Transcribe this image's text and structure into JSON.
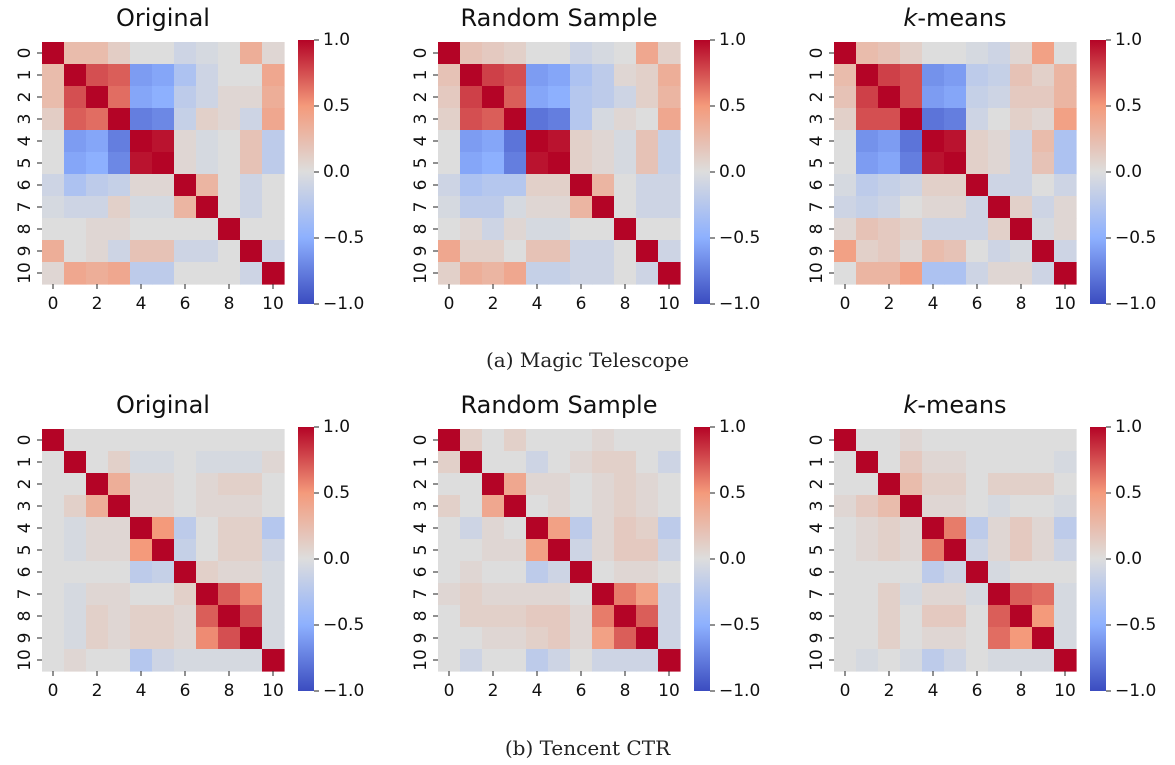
{
  "captions": [
    "(a) Magic Telescope",
    "(b) Tencent CTR"
  ],
  "colormap": {
    "name": "coolwarm",
    "low": "#3b4cc0",
    "mid": "#dddddd",
    "high": "#b40426"
  },
  "chart_data": [
    {
      "type": "heatmap",
      "panel": "a",
      "title": "Original",
      "title_prefix": "",
      "title_suffix": "",
      "x_tick_labels": [
        "0",
        "2",
        "4",
        "6",
        "8",
        "10"
      ],
      "y_tick_labels": [
        "0",
        "1",
        "2",
        "3",
        "4",
        "5",
        "6",
        "7",
        "8",
        "9",
        "10"
      ],
      "colorbar_ticks": [
        "1.0",
        "0.5",
        "0.0",
        "−0.5",
        "−1.0"
      ],
      "vmin": -1,
      "vmax": 1,
      "values": [
        [
          1.0,
          0.25,
          0.25,
          0.12,
          0.0,
          0.0,
          -0.1,
          -0.05,
          0.0,
          0.35,
          0.05
        ],
        [
          0.25,
          1.0,
          0.75,
          0.7,
          -0.6,
          -0.55,
          -0.3,
          -0.1,
          0.0,
          0.0,
          0.4
        ],
        [
          0.25,
          0.75,
          1.0,
          0.65,
          -0.55,
          -0.5,
          -0.2,
          -0.1,
          0.05,
          0.05,
          0.35
        ],
        [
          0.12,
          0.7,
          0.65,
          1.0,
          -0.75,
          -0.7,
          -0.15,
          0.1,
          0.05,
          -0.1,
          0.4
        ],
        [
          0.0,
          -0.6,
          -0.55,
          -0.75,
          1.0,
          0.95,
          0.05,
          -0.05,
          0.0,
          0.2,
          -0.2
        ],
        [
          0.0,
          -0.55,
          -0.5,
          -0.7,
          0.95,
          1.0,
          0.05,
          -0.05,
          0.0,
          0.2,
          -0.2
        ],
        [
          -0.1,
          -0.3,
          -0.2,
          -0.15,
          0.05,
          0.05,
          1.0,
          0.3,
          0.0,
          -0.1,
          0.0
        ],
        [
          -0.05,
          -0.1,
          -0.1,
          0.1,
          -0.05,
          -0.05,
          0.3,
          1.0,
          0.0,
          -0.1,
          0.0
        ],
        [
          0.0,
          0.0,
          0.05,
          0.05,
          0.0,
          0.0,
          0.0,
          0.0,
          1.0,
          0.0,
          0.0
        ],
        [
          0.35,
          0.0,
          0.05,
          -0.1,
          0.2,
          0.2,
          -0.1,
          -0.1,
          0.0,
          1.0,
          -0.1
        ],
        [
          0.05,
          0.4,
          0.35,
          0.4,
          -0.2,
          -0.2,
          0.0,
          0.0,
          0.0,
          -0.1,
          1.0
        ]
      ]
    },
    {
      "type": "heatmap",
      "panel": "a",
      "title": "Random Sample",
      "title_prefix": "",
      "title_suffix": "",
      "x_tick_labels": [
        "0",
        "2",
        "4",
        "6",
        "8",
        "10"
      ],
      "y_tick_labels": [
        "0",
        "1",
        "2",
        "3",
        "4",
        "5",
        "6",
        "7",
        "8",
        "9",
        "10"
      ],
      "colorbar_ticks": [
        "1.0",
        "0.5",
        "0.0",
        "−0.5",
        "−1.0"
      ],
      "vmin": -1,
      "vmax": 1,
      "values": [
        [
          1.0,
          0.2,
          0.15,
          0.1,
          0.0,
          0.0,
          -0.1,
          -0.05,
          0.0,
          0.4,
          0.1
        ],
        [
          0.2,
          1.0,
          0.8,
          0.75,
          -0.6,
          -0.55,
          -0.3,
          -0.2,
          0.05,
          0.1,
          0.35
        ],
        [
          0.15,
          0.8,
          1.0,
          0.7,
          -0.55,
          -0.5,
          -0.25,
          -0.2,
          -0.1,
          0.1,
          0.3
        ],
        [
          0.1,
          0.75,
          0.7,
          1.0,
          -0.8,
          -0.75,
          -0.25,
          -0.05,
          0.05,
          0.0,
          0.4
        ],
        [
          0.0,
          -0.6,
          -0.55,
          -0.8,
          1.0,
          0.95,
          0.1,
          0.05,
          -0.05,
          0.2,
          -0.15
        ],
        [
          0.0,
          -0.55,
          -0.5,
          -0.75,
          0.95,
          1.0,
          0.1,
          0.05,
          -0.05,
          0.2,
          -0.15
        ],
        [
          -0.1,
          -0.3,
          -0.25,
          -0.25,
          0.1,
          0.1,
          1.0,
          0.3,
          0.0,
          -0.1,
          -0.1
        ],
        [
          -0.05,
          -0.2,
          -0.2,
          -0.05,
          0.05,
          0.05,
          0.3,
          1.0,
          0.0,
          -0.1,
          -0.1
        ],
        [
          0.0,
          0.05,
          -0.1,
          0.05,
          -0.05,
          -0.05,
          0.0,
          0.0,
          1.0,
          0.0,
          0.0
        ],
        [
          0.4,
          0.1,
          0.1,
          0.0,
          0.2,
          0.2,
          -0.1,
          -0.1,
          0.0,
          1.0,
          -0.1
        ],
        [
          0.1,
          0.35,
          0.3,
          0.4,
          -0.15,
          -0.15,
          -0.1,
          -0.1,
          0.0,
          -0.1,
          1.0
        ]
      ]
    },
    {
      "type": "heatmap",
      "panel": "a",
      "title": "-means",
      "title_prefix": "k",
      "title_suffix": "-means",
      "x_tick_labels": [
        "0",
        "2",
        "4",
        "6",
        "8",
        "10"
      ],
      "y_tick_labels": [
        "0",
        "1",
        "2",
        "3",
        "4",
        "5",
        "6",
        "7",
        "8",
        "9",
        "10"
      ],
      "colorbar_ticks": [
        "1.0",
        "0.5",
        "0.0",
        "−0.5",
        "−1.0"
      ],
      "vmin": -1,
      "vmax": 1,
      "values": [
        [
          1.0,
          0.25,
          0.2,
          0.1,
          0.0,
          0.0,
          -0.05,
          -0.1,
          0.05,
          0.45,
          0.0
        ],
        [
          0.25,
          1.0,
          0.8,
          0.75,
          -0.65,
          -0.6,
          -0.2,
          -0.15,
          0.2,
          0.1,
          0.3
        ],
        [
          0.2,
          0.8,
          1.0,
          0.75,
          -0.6,
          -0.55,
          -0.15,
          -0.1,
          0.15,
          0.15,
          0.3
        ],
        [
          0.1,
          0.75,
          0.75,
          1.0,
          -0.8,
          -0.75,
          -0.1,
          0.0,
          0.1,
          0.05,
          0.45
        ],
        [
          0.0,
          -0.65,
          -0.6,
          -0.8,
          1.0,
          0.95,
          0.1,
          0.05,
          -0.1,
          0.25,
          -0.3
        ],
        [
          0.0,
          -0.6,
          -0.55,
          -0.75,
          0.95,
          1.0,
          0.1,
          0.05,
          -0.1,
          0.2,
          -0.3
        ],
        [
          -0.05,
          -0.2,
          -0.15,
          -0.1,
          0.1,
          0.1,
          1.0,
          -0.1,
          -0.1,
          0.0,
          -0.1
        ],
        [
          -0.1,
          -0.15,
          -0.1,
          0.0,
          0.05,
          0.05,
          -0.1,
          1.0,
          0.1,
          -0.1,
          0.05
        ],
        [
          0.05,
          0.2,
          0.15,
          0.1,
          -0.1,
          -0.1,
          -0.1,
          0.1,
          1.0,
          -0.05,
          0.05
        ],
        [
          0.45,
          0.1,
          0.15,
          0.05,
          0.25,
          0.2,
          0.0,
          -0.1,
          -0.05,
          1.0,
          -0.1
        ],
        [
          0.0,
          0.3,
          0.3,
          0.45,
          -0.3,
          -0.3,
          -0.1,
          0.05,
          0.05,
          -0.1,
          1.0
        ]
      ]
    },
    {
      "type": "heatmap",
      "panel": "b",
      "title": "Original",
      "title_prefix": "",
      "title_suffix": "",
      "x_tick_labels": [
        "0",
        "2",
        "4",
        "6",
        "8",
        "10"
      ],
      "y_tick_labels": [
        "0",
        "1",
        "2",
        "3",
        "4",
        "5",
        "6",
        "7",
        "8",
        "9",
        "10"
      ],
      "colorbar_ticks": [
        "1.0",
        "0.5",
        "0.0",
        "−0.5",
        "−1.0"
      ],
      "vmin": -1,
      "vmax": 1,
      "values": [
        [
          1.0,
          0.0,
          0.0,
          0.0,
          0.0,
          0.0,
          0.0,
          0.0,
          0.0,
          0.0,
          0.0
        ],
        [
          0.0,
          1.0,
          0.0,
          0.1,
          -0.05,
          -0.05,
          0.0,
          -0.05,
          -0.05,
          -0.05,
          0.05
        ],
        [
          0.0,
          0.0,
          1.0,
          0.35,
          0.05,
          0.05,
          0.0,
          0.05,
          0.1,
          0.1,
          0.0
        ],
        [
          0.0,
          0.1,
          0.35,
          1.0,
          0.05,
          0.05,
          0.0,
          0.05,
          0.05,
          0.05,
          0.0
        ],
        [
          0.0,
          -0.05,
          0.05,
          0.05,
          1.0,
          0.5,
          -0.2,
          0.0,
          0.1,
          0.1,
          -0.25
        ],
        [
          0.0,
          -0.05,
          0.05,
          0.05,
          0.5,
          1.0,
          -0.15,
          0.0,
          0.1,
          0.1,
          -0.1
        ],
        [
          0.0,
          0.0,
          0.0,
          0.0,
          -0.2,
          -0.15,
          1.0,
          0.1,
          0.05,
          0.05,
          -0.05
        ],
        [
          0.0,
          -0.05,
          0.05,
          0.05,
          0.0,
          0.0,
          0.1,
          1.0,
          0.7,
          0.55,
          -0.05
        ],
        [
          0.0,
          -0.05,
          0.1,
          0.05,
          0.1,
          0.1,
          0.05,
          0.7,
          1.0,
          0.75,
          -0.05
        ],
        [
          0.0,
          -0.05,
          0.1,
          0.05,
          0.1,
          0.1,
          0.05,
          0.55,
          0.75,
          1.0,
          -0.05
        ],
        [
          0.0,
          0.05,
          0.0,
          0.0,
          -0.25,
          -0.1,
          -0.05,
          -0.05,
          -0.05,
          -0.05,
          1.0
        ]
      ]
    },
    {
      "type": "heatmap",
      "panel": "b",
      "title": "Random Sample",
      "title_prefix": "",
      "title_suffix": "",
      "x_tick_labels": [
        "0",
        "2",
        "4",
        "6",
        "8",
        "10"
      ],
      "y_tick_labels": [
        "0",
        "1",
        "2",
        "3",
        "4",
        "5",
        "6",
        "7",
        "8",
        "9",
        "10"
      ],
      "colorbar_ticks": [
        "1.0",
        "0.5",
        "0.0",
        "−0.5",
        "−1.0"
      ],
      "vmin": -1,
      "vmax": 1,
      "values": [
        [
          1.0,
          0.1,
          0.0,
          0.1,
          0.0,
          0.0,
          0.0,
          0.05,
          0.0,
          0.0,
          0.0
        ],
        [
          0.1,
          1.0,
          0.0,
          0.0,
          -0.1,
          0.0,
          0.05,
          0.1,
          0.1,
          0.0,
          -0.1
        ],
        [
          0.0,
          0.0,
          1.0,
          0.4,
          0.05,
          0.05,
          0.0,
          0.05,
          0.1,
          0.05,
          0.0
        ],
        [
          0.1,
          0.0,
          0.4,
          1.0,
          0.0,
          0.05,
          0.0,
          0.05,
          0.1,
          0.05,
          0.0
        ],
        [
          0.0,
          -0.1,
          0.05,
          0.0,
          1.0,
          0.45,
          -0.2,
          0.05,
          0.15,
          0.1,
          -0.2
        ],
        [
          0.0,
          0.0,
          0.05,
          0.05,
          0.45,
          1.0,
          -0.1,
          0.05,
          0.15,
          0.15,
          -0.1
        ],
        [
          0.0,
          0.05,
          0.0,
          0.0,
          -0.2,
          -0.1,
          1.0,
          0.0,
          0.05,
          0.05,
          0.0
        ],
        [
          0.05,
          0.1,
          0.05,
          0.05,
          0.05,
          0.05,
          0.0,
          1.0,
          0.6,
          0.45,
          -0.1
        ],
        [
          0.0,
          0.1,
          0.1,
          0.1,
          0.15,
          0.15,
          0.05,
          0.6,
          1.0,
          0.7,
          -0.1
        ],
        [
          0.0,
          0.0,
          0.05,
          0.05,
          0.1,
          0.15,
          0.05,
          0.45,
          0.7,
          1.0,
          -0.1
        ],
        [
          0.0,
          -0.1,
          0.0,
          0.0,
          -0.2,
          -0.1,
          0.0,
          -0.1,
          -0.1,
          -0.1,
          1.0
        ]
      ]
    },
    {
      "type": "heatmap",
      "panel": "b",
      "title": "-means",
      "title_prefix": "k",
      "title_suffix": "-means",
      "x_tick_labels": [
        "0",
        "2",
        "4",
        "6",
        "8",
        "10"
      ],
      "y_tick_labels": [
        "0",
        "1",
        "2",
        "3",
        "4",
        "5",
        "6",
        "7",
        "8",
        "9",
        "10"
      ],
      "colorbar_ticks": [
        "1.0",
        "0.5",
        "0.0",
        "−0.5",
        "−1.0"
      ],
      "vmin": -1,
      "vmax": 1,
      "values": [
        [
          1.0,
          0.0,
          0.0,
          0.05,
          0.0,
          0.0,
          0.0,
          0.0,
          0.0,
          0.0,
          0.0
        ],
        [
          0.0,
          1.0,
          0.0,
          0.15,
          0.05,
          0.05,
          0.0,
          0.0,
          0.0,
          0.0,
          -0.05
        ],
        [
          0.0,
          0.0,
          1.0,
          0.25,
          0.1,
          0.1,
          0.0,
          0.1,
          0.1,
          0.1,
          0.0
        ],
        [
          0.05,
          0.15,
          0.25,
          1.0,
          0.05,
          0.05,
          0.0,
          -0.05,
          0.0,
          0.0,
          -0.05
        ],
        [
          0.0,
          0.05,
          0.1,
          0.05,
          1.0,
          0.6,
          -0.2,
          0.05,
          0.15,
          0.05,
          -0.2
        ],
        [
          0.0,
          0.05,
          0.1,
          0.05,
          0.6,
          1.0,
          -0.1,
          0.05,
          0.15,
          0.05,
          -0.1
        ],
        [
          0.0,
          0.0,
          0.0,
          0.0,
          -0.2,
          -0.1,
          1.0,
          -0.05,
          0.0,
          0.0,
          0.0
        ],
        [
          0.0,
          0.0,
          0.1,
          -0.05,
          0.05,
          0.05,
          -0.05,
          1.0,
          0.7,
          0.65,
          -0.05
        ],
        [
          0.0,
          0.0,
          0.1,
          0.0,
          0.15,
          0.15,
          0.0,
          0.7,
          1.0,
          0.5,
          -0.05
        ],
        [
          0.0,
          0.0,
          0.1,
          0.0,
          0.05,
          0.05,
          0.0,
          0.65,
          0.5,
          1.0,
          -0.05
        ],
        [
          0.0,
          -0.05,
          0.0,
          -0.05,
          -0.2,
          -0.1,
          0.0,
          -0.05,
          -0.05,
          -0.05,
          1.0
        ]
      ]
    }
  ]
}
